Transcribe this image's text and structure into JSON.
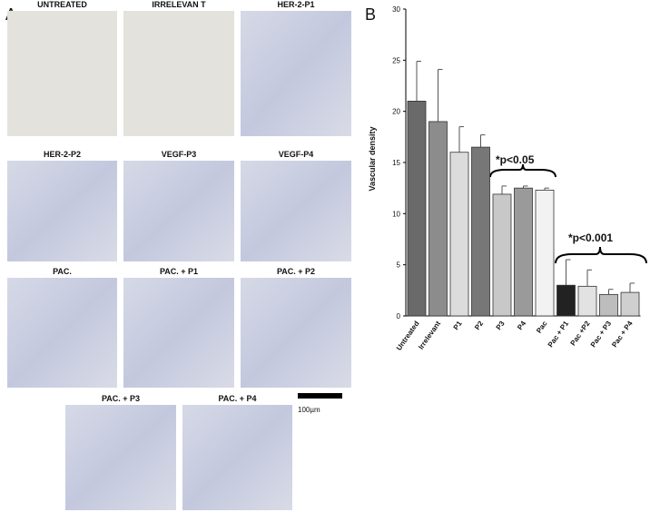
{
  "panel_a": {
    "label": "A",
    "images": [
      {
        "label": "UNTREATED"
      },
      {
        "label": "IRRELEVAN T"
      },
      {
        "label": "HER-2-P1"
      },
      {
        "label": "HER-2-P2"
      },
      {
        "label": "VEGF-P3"
      },
      {
        "label": "VEGF-P4"
      },
      {
        "label": "PAC."
      },
      {
        "label": "PAC. + P1"
      },
      {
        "label": "PAC. + P2"
      },
      {
        "label": "PAC. + P3"
      },
      {
        "label": "PAC. + P4"
      }
    ],
    "scale_bar": "100µm"
  },
  "panel_b_label": "B",
  "chart_data": {
    "type": "bar",
    "y_label": "Vascular density",
    "categories": [
      "Untreated",
      "Irrelevant",
      "P1",
      "P2",
      "P3",
      "P4",
      "Pac",
      "Pac + P1",
      "Pac +P2",
      "Pac + P3",
      "Pac + P4"
    ],
    "values": [
      21,
      19,
      16,
      16.5,
      11.9,
      12.5,
      12.3,
      3,
      2.9,
      2.1,
      2.3
    ],
    "errors": [
      3.9,
      5.1,
      2.5,
      1.2,
      0.8,
      0.2,
      0.2,
      2.5,
      1.6,
      0.5,
      0.9
    ],
    "colors": [
      "#6a6a6a",
      "#8c8c8c",
      "#dcdcdc",
      "#777777",
      "#c8c8c8",
      "#9a9a9a",
      "#f2f2f2",
      "#222222",
      "#e2e2e2",
      "#bdbdbd",
      "#cfcfcf"
    ],
    "ylim": [
      0,
      30
    ],
    "yticks": [
      0,
      5,
      10,
      15,
      20,
      25,
      30
    ],
    "annotations": [
      "*p<0.05",
      "*p<0.001"
    ]
  }
}
